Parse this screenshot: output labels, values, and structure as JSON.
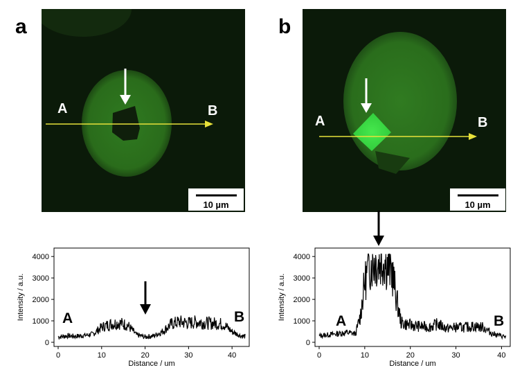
{
  "panels": [
    {
      "letter": "a",
      "point_a": "A",
      "point_b": "B",
      "scalebar": "10 µm",
      "plot": {
        "point_a": "A",
        "point_b": "B"
      }
    },
    {
      "letter": "b",
      "point_a": "A",
      "point_b": "B",
      "scalebar": "10 µm",
      "plot": {
        "point_a": "A",
        "point_b": "B"
      }
    }
  ],
  "colors": {
    "background": "#0b1a09",
    "cell": "#2b6e1c",
    "crystal": "#3fdc46",
    "line": "#e8e23a"
  },
  "chart_data": [
    {
      "type": "line",
      "xlabel": "Distance / um",
      "ylabel": "Intensity / a.u.",
      "xlim": [
        0,
        43
      ],
      "ylim": [
        0,
        4200
      ],
      "xticks": [
        0,
        10,
        20,
        30,
        40
      ],
      "yticks": [
        0,
        1000,
        2000,
        3000,
        4000
      ],
      "x": [
        0,
        2,
        4,
        6,
        8,
        10,
        12,
        14,
        16,
        18,
        20,
        22,
        24,
        26,
        28,
        30,
        32,
        34,
        36,
        38,
        40,
        42,
        43
      ],
      "y": [
        250,
        300,
        280,
        320,
        380,
        700,
        850,
        900,
        800,
        350,
        250,
        300,
        500,
        850,
        950,
        900,
        950,
        900,
        880,
        850,
        500,
        300,
        280
      ]
    },
    {
      "type": "line",
      "xlabel": "Distance / um",
      "ylabel": "Intensity / a.u.",
      "xlim": [
        0,
        41
      ],
      "ylim": [
        0,
        4200
      ],
      "xticks": [
        0,
        10,
        20,
        30,
        40
      ],
      "yticks": [
        0,
        1000,
        2000,
        3000,
        4000
      ],
      "x": [
        0,
        2,
        4,
        6,
        8,
        9,
        10,
        11,
        12,
        13,
        14,
        15,
        16,
        17,
        18,
        20,
        22,
        24,
        26,
        28,
        30,
        32,
        34,
        36,
        38,
        40,
        41
      ],
      "y": [
        300,
        350,
        400,
        450,
        400,
        1200,
        2800,
        3600,
        3800,
        3700,
        3900,
        3600,
        3300,
        2000,
        900,
        800,
        750,
        700,
        850,
        650,
        700,
        700,
        750,
        700,
        400,
        300,
        250
      ]
    }
  ]
}
